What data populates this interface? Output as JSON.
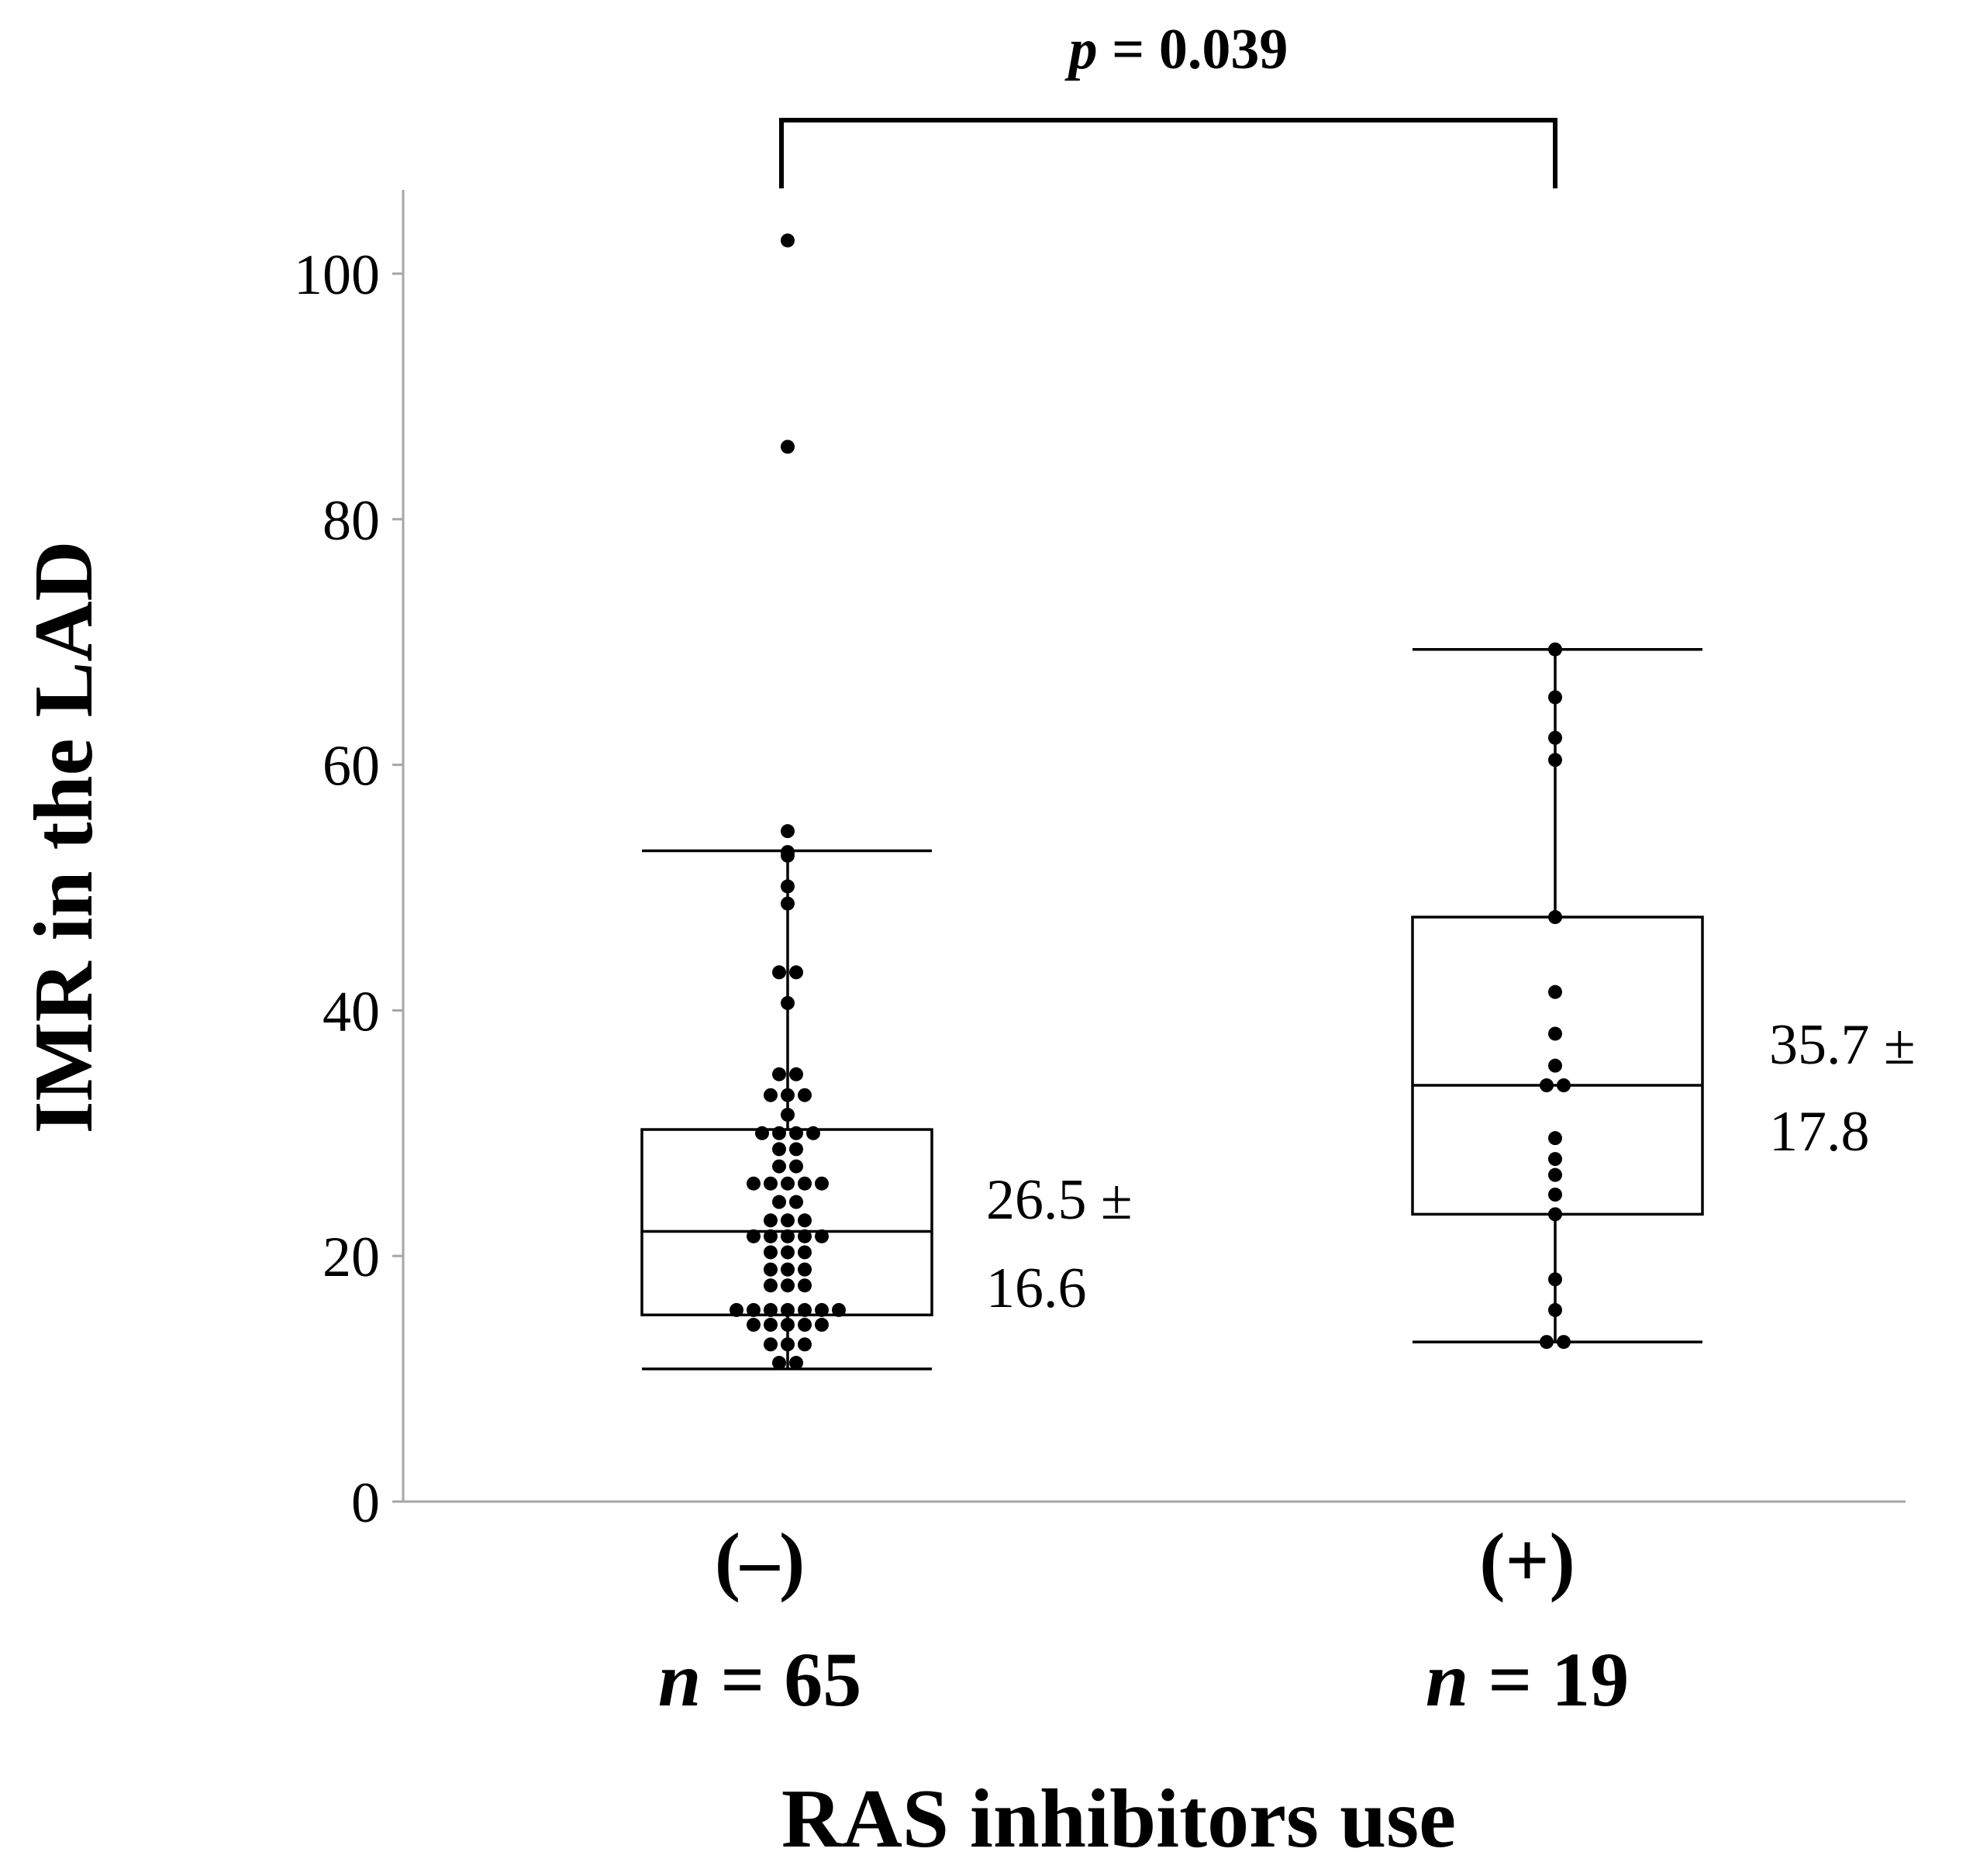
{
  "chart_data": {
    "type": "box",
    "title": "",
    "ylabel": "IMR in the LAD",
    "xlabel": "RAS inhibitors use",
    "ylim": [
      0,
      105
    ],
    "yticks": [
      0,
      20,
      40,
      60,
      80,
      100
    ],
    "grid": false,
    "groups": [
      {
        "label": "(–)",
        "n_prefix": "n",
        "n_text": " = 65",
        "box": {
          "whisker_low": 10.8,
          "q1": 15.2,
          "median": 22.0,
          "q3": 30.3,
          "whisker_high": 53.0
        },
        "summary_line1": "26.5 ±",
        "summary_line2": "16.6",
        "points": [
          102.7,
          85.9,
          54.6,
          52.9,
          52.6,
          50.1,
          48.7,
          43.1,
          43.1,
          40.6,
          34.8,
          34.8,
          33.1,
          33.1,
          33.1,
          31.5,
          30.0,
          30.0,
          30.0,
          30.0,
          28.7,
          28.7,
          27.3,
          27.3,
          25.9,
          25.9,
          25.9,
          25.9,
          25.9,
          24.4,
          24.4,
          22.9,
          22.9,
          22.9,
          21.6,
          21.6,
          21.6,
          21.6,
          21.6,
          20.3,
          20.3,
          20.3,
          18.9,
          18.9,
          18.9,
          17.6,
          17.6,
          17.6,
          15.6,
          15.6,
          15.6,
          15.6,
          15.6,
          15.6,
          15.6,
          14.4,
          14.4,
          14.4,
          14.4,
          14.4,
          12.8,
          12.8,
          12.8,
          11.3,
          11.3
        ]
      },
      {
        "label": "(+)",
        "n_prefix": "n",
        "n_text": " = 19",
        "box": {
          "whisker_low": 13.0,
          "q1": 23.4,
          "median": 33.9,
          "q3": 47.6,
          "whisker_high": 69.4
        },
        "summary_line1": "35.7 ±",
        "summary_line2": "17.8",
        "points": [
          69.4,
          65.5,
          62.2,
          60.4,
          47.6,
          41.5,
          38.1,
          35.5,
          33.9,
          33.9,
          29.6,
          27.9,
          26.6,
          25.0,
          23.4,
          18.1,
          15.6,
          13.0,
          13.0
        ]
      }
    ],
    "annotation": {
      "p_symbol": "p",
      "p_text": " = 0.039"
    }
  }
}
